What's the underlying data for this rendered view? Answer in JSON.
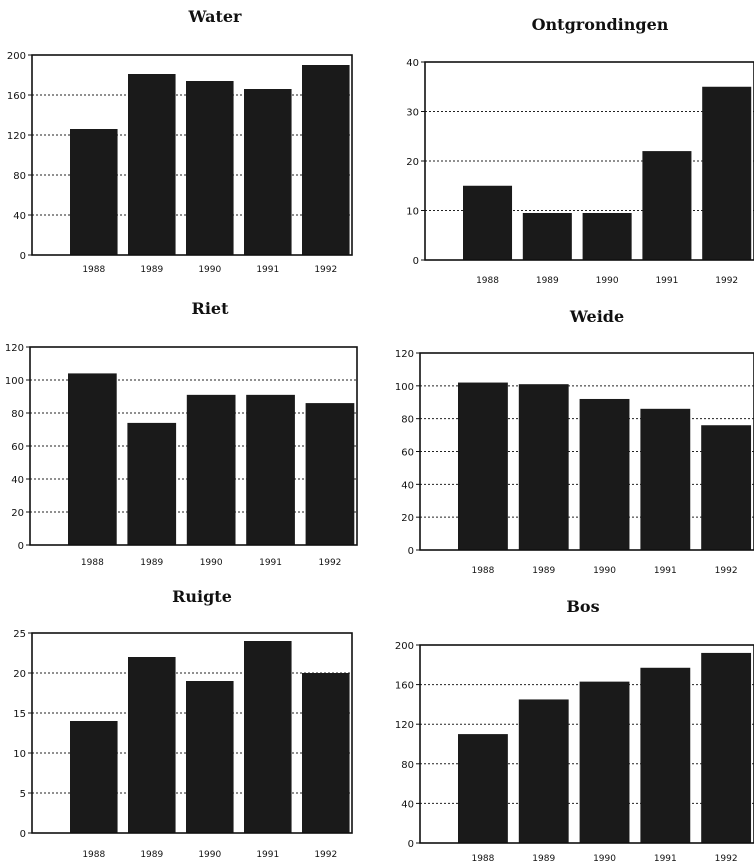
{
  "chart_data": [
    {
      "type": "bar",
      "title": "Water",
      "categories": [
        "1988",
        "1989",
        "1990",
        "1991",
        "1992"
      ],
      "values": [
        126,
        181,
        174,
        166,
        190
      ],
      "yticks": [
        0,
        40,
        80,
        120,
        160,
        200
      ],
      "ylim": [
        0,
        200
      ],
      "grid": true,
      "bar_color": "#1a1a1a"
    },
    {
      "type": "bar",
      "title": "Ontgrondingen",
      "categories": [
        "1988",
        "1989",
        "1990",
        "1991",
        "1992"
      ],
      "values": [
        15,
        9.5,
        9.5,
        22,
        35
      ],
      "yticks": [
        0,
        10,
        20,
        30,
        40
      ],
      "ylim": [
        0,
        40
      ],
      "grid": true,
      "bar_color": "#1a1a1a"
    },
    {
      "type": "bar",
      "title": "Riet",
      "categories": [
        "1988",
        "1989",
        "1990",
        "1991",
        "1992"
      ],
      "values": [
        104,
        74,
        91,
        91,
        86
      ],
      "yticks": [
        0,
        20,
        40,
        60,
        80,
        100,
        120
      ],
      "ylim": [
        0,
        120
      ],
      "grid": true,
      "bar_color": "#1a1a1a"
    },
    {
      "type": "bar",
      "title": "Weide",
      "categories": [
        "1988",
        "1989",
        "1990",
        "1991",
        "1992"
      ],
      "values": [
        102,
        101,
        92,
        86,
        76
      ],
      "yticks": [
        0,
        20,
        40,
        60,
        80,
        100,
        120
      ],
      "ylim": [
        0,
        120
      ],
      "grid": true,
      "bar_color": "#1a1a1a"
    },
    {
      "type": "bar",
      "title": "Ruigte",
      "categories": [
        "1988",
        "1989",
        "1990",
        "1991",
        "1992"
      ],
      "values": [
        14,
        22,
        19,
        24,
        20
      ],
      "yticks": [
        0,
        5,
        10,
        15,
        20,
        25
      ],
      "ylim": [
        0,
        25
      ],
      "grid": true,
      "bar_color": "#1a1a1a"
    },
    {
      "type": "bar",
      "title": "Bos",
      "categories": [
        "1988",
        "1989",
        "1990",
        "1991",
        "1992"
      ],
      "values": [
        110,
        145,
        163,
        177,
        192
      ],
      "yticks": [
        0,
        40,
        80,
        120,
        160,
        200
      ],
      "ylim": [
        0,
        200
      ],
      "grid": true,
      "bar_color": "#1a1a1a"
    }
  ]
}
